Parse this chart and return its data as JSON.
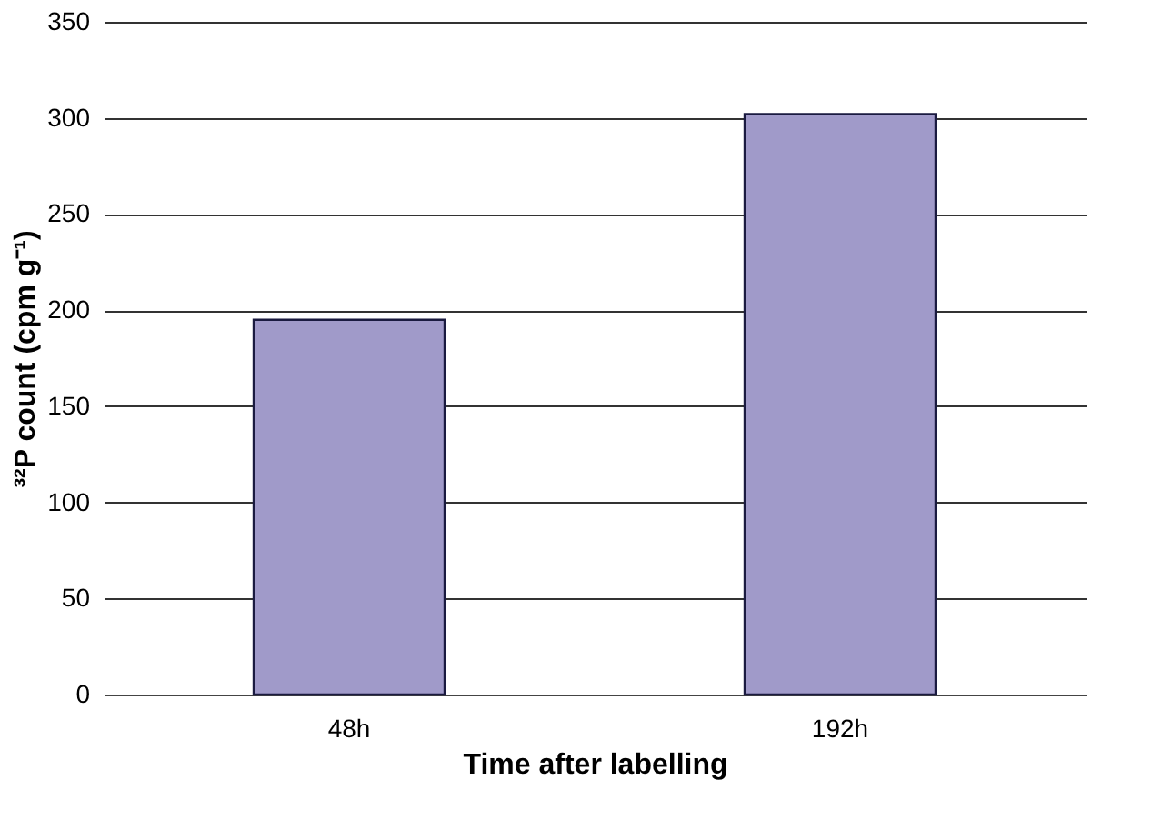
{
  "chart_data": {
    "type": "bar",
    "xlabel": "Time after labelling",
    "ylabel": "³²P count (cpm g⁻¹)",
    "categories": [
      "48h",
      "192h"
    ],
    "values": [
      195,
      302
    ],
    "color": "#a09ac9",
    "ylim": [
      0,
      350
    ],
    "yticks": [
      0,
      50,
      100,
      150,
      200,
      250,
      300,
      350
    ],
    "grid": "y"
  }
}
